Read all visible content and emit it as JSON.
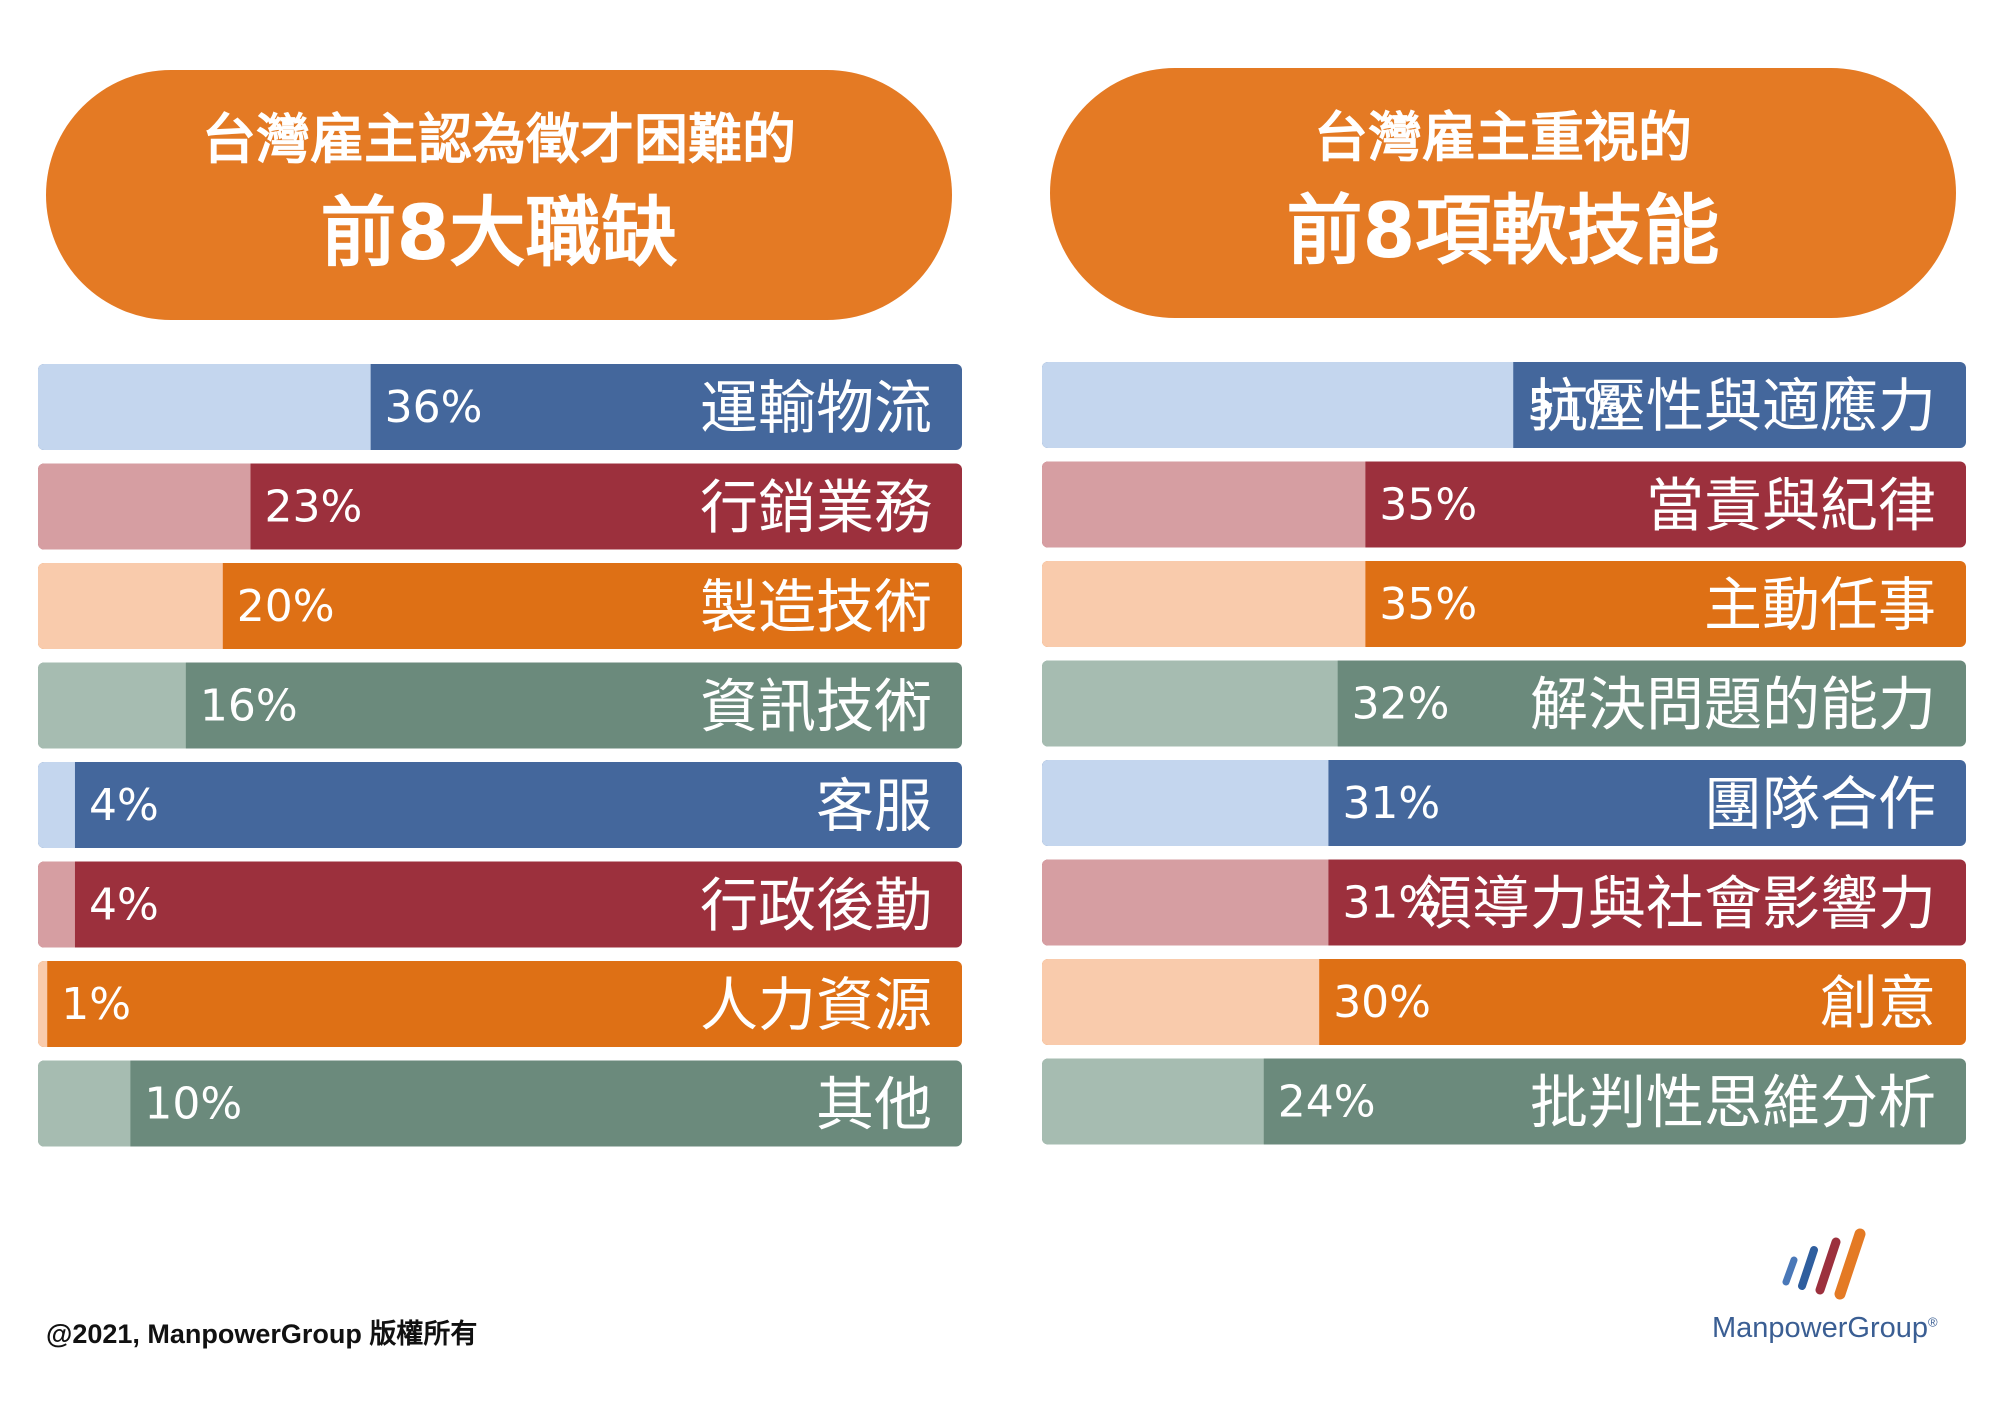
{
  "left_panel": {
    "title_line1": "台灣雇主認為徵才困難的",
    "title_line2": "前8大職缺"
  },
  "right_panel": {
    "title_line1": "台灣雇主重視的",
    "title_line2": "前8項軟技能"
  },
  "chart_data": [
    {
      "type": "bar",
      "orientation": "horizontal",
      "title": "台灣雇主認為徵才困難的 前8大職缺",
      "categories": [
        "運輸物流",
        "行銷業務",
        "製造技術",
        "資訊技術",
        "客服",
        "行政後勤",
        "人力資源",
        "其他"
      ],
      "values": [
        36,
        23,
        20,
        16,
        4,
        4,
        1,
        10
      ],
      "value_labels": [
        "36%",
        "23%",
        "20%",
        "16%",
        "4%",
        "4%",
        "1%",
        "10%"
      ],
      "unit": "%",
      "xlim": [
        0,
        100
      ]
    },
    {
      "type": "bar",
      "orientation": "horizontal",
      "title": "台灣雇主重視的 前8項軟技能",
      "categories": [
        "抗壓性與適應力",
        "當責與紀律",
        "主動任事",
        "解決問題的能力",
        "團隊合作",
        "領導力與社會影響力",
        "創意",
        "批判性思維分析"
      ],
      "values": [
        51,
        35,
        35,
        32,
        31,
        31,
        30,
        24
      ],
      "value_labels": [
        "51%",
        "35%",
        "35%",
        "32%",
        "31%",
        "31%",
        "30%",
        "24%"
      ],
      "unit": "%",
      "xlim": [
        0,
        100
      ]
    }
  ],
  "colors": {
    "pill": "#E47A24",
    "row_palette": [
      {
        "dark": "#44679C",
        "light": "#C4D6EE"
      },
      {
        "dark": "#9C303D",
        "light": "#D69EA2"
      },
      {
        "dark": "#DE7015",
        "light": "#F9CBAC"
      },
      {
        "dark": "#6B8A7C",
        "light": "#A6BCB1"
      }
    ]
  },
  "footer": {
    "copyright": "@2021, ManpowerGroup 版權所有"
  },
  "logo": {
    "text": "ManpowerGroup",
    "mark": "®",
    "icon": "manpowergroup-logo-icon"
  }
}
